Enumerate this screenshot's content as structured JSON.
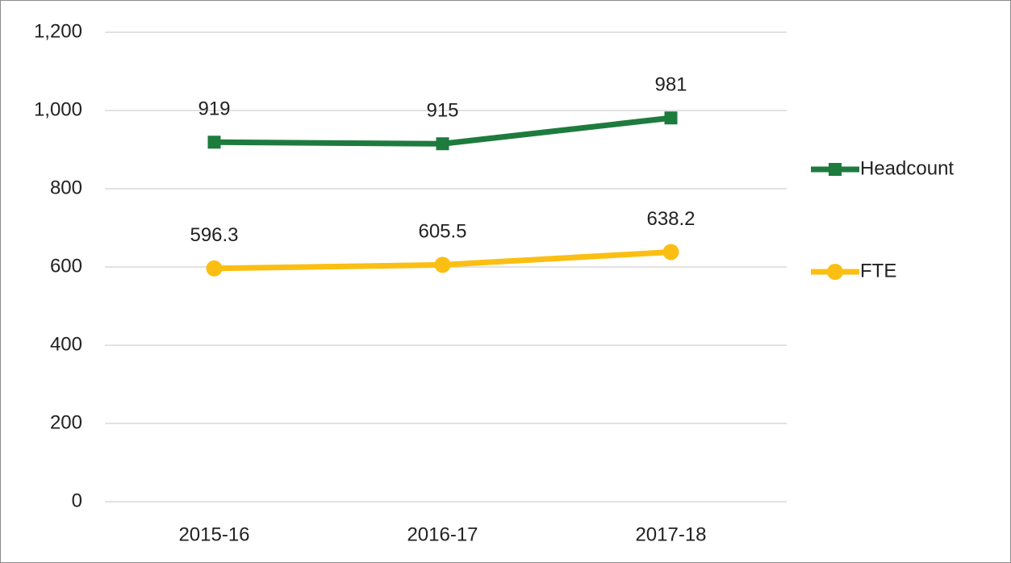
{
  "chart_data": {
    "type": "line",
    "categories": [
      "2015-16",
      "2016-17",
      "2017-18"
    ],
    "series": [
      {
        "name": "Headcount",
        "color": "#1e7b3e",
        "marker": "square",
        "values": [
          919,
          915,
          981
        ]
      },
      {
        "name": "FTE",
        "color": "#fbbf13",
        "marker": "circle",
        "values": [
          596.3,
          605.5,
          638.2
        ]
      }
    ],
    "ylim": [
      0,
      1200
    ],
    "yticks": [
      0,
      200,
      400,
      600,
      800,
      {
        "value": 1000,
        "label": "1,000"
      },
      {
        "value": 1200,
        "label": "1,200"
      }
    ],
    "grid": true,
    "legend": "right"
  }
}
